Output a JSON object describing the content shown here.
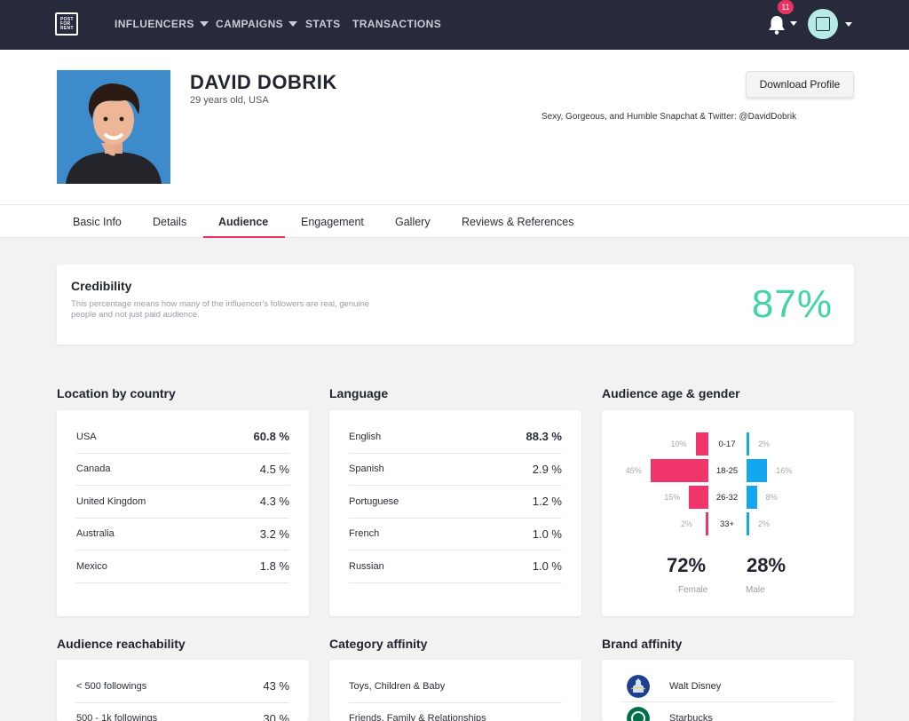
{
  "nav": {
    "logo_lines": [
      "POST",
      "FOR",
      "RENT"
    ],
    "items": [
      {
        "label": "INFLUENCERS",
        "dropdown": true
      },
      {
        "label": "CAMPAIGNS",
        "dropdown": true
      },
      {
        "label": "STATS",
        "dropdown": false
      },
      {
        "label": "TRANSACTIONS",
        "dropdown": false
      }
    ],
    "notifications_count": "11"
  },
  "profile": {
    "name": "DAVID DOBRIK",
    "meta": "29 years old, USA",
    "bio": "Sexy, Gorgeous, and Humble Snapchat & Twitter: @DavidDobrik",
    "download_label": "Download Profile"
  },
  "tabs": [
    {
      "label": "Basic Info",
      "active": false
    },
    {
      "label": "Details",
      "active": false
    },
    {
      "label": "Audience",
      "active": true
    },
    {
      "label": "Engagement",
      "active": false
    },
    {
      "label": "Gallery",
      "active": false
    },
    {
      "label": "Reviews & References",
      "active": false
    }
  ],
  "credibility": {
    "title": "Credibility",
    "description": "This percentage means how many of the influencer's followers are real, genuine people and not just paid audience.",
    "value": "87%"
  },
  "location": {
    "title": "Location by country",
    "rows": [
      {
        "label": "USA",
        "value": "60.8 %"
      },
      {
        "label": "Canada",
        "value": "4.5 %"
      },
      {
        "label": "United Kingdom",
        "value": "4.3 %"
      },
      {
        "label": "Australia",
        "value": "3.2 %"
      },
      {
        "label": "Mexico",
        "value": "1.8 %"
      }
    ]
  },
  "language": {
    "title": "Language",
    "rows": [
      {
        "label": "English",
        "value": "88.3 %"
      },
      {
        "label": "Spanish",
        "value": "2.9 %"
      },
      {
        "label": "Portuguese",
        "value": "1.2 %"
      },
      {
        "label": "French",
        "value": "1.0 %"
      },
      {
        "label": "Russian",
        "value": "1.0 %"
      }
    ]
  },
  "age_gender": {
    "title": "Audience age & gender",
    "groups": [
      {
        "age": "0-17",
        "female": "10%",
        "male": "2%",
        "female_value": 10,
        "male_value": 2
      },
      {
        "age": "18-25",
        "female": "45%",
        "male": "16%",
        "female_value": 45,
        "male_value": 16
      },
      {
        "age": "26-32",
        "female": "15%",
        "male": "8%",
        "female_value": 15,
        "male_value": 8
      },
      {
        "age": "33+",
        "female": "2%",
        "male": "2%",
        "female_value": 2,
        "male_value": 2
      }
    ],
    "female_total": "72%",
    "male_total": "28%",
    "female_label": "Female",
    "male_label": "Male",
    "female_color": "#f1356a",
    "male_color": "#12a7ee"
  },
  "reachability": {
    "title": "Audience reachability",
    "rows": [
      {
        "label": "< 500 followings",
        "value": "43 %"
      },
      {
        "label": "500 - 1k followings",
        "value": "30 %"
      }
    ]
  },
  "category": {
    "title": "Category affinity",
    "rows": [
      {
        "label": "Toys, Children & Baby"
      },
      {
        "label": "Friends, Family & Relationships"
      }
    ]
  },
  "brand": {
    "title": "Brand affinity",
    "rows": [
      {
        "label": "Walt Disney",
        "icon": "walt-disney-logo-icon"
      },
      {
        "label": "Starbucks",
        "icon": "starbucks-logo-icon"
      }
    ]
  }
}
